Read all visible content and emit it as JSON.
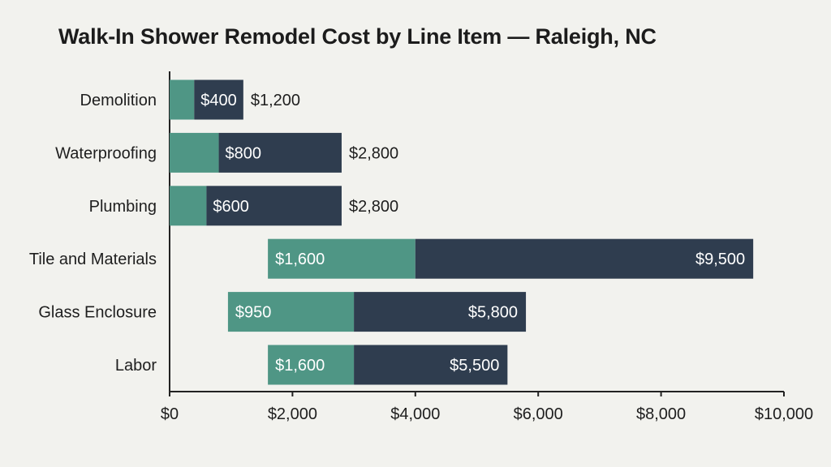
{
  "chart_data": {
    "type": "bar",
    "orientation": "horizontal",
    "title": "Walk-In Shower Remodel Cost by Line Item — Raleigh, NC",
    "xlabel": "",
    "ylabel": "",
    "xlim": [
      0,
      10000
    ],
    "x_ticks": [
      0,
      2000,
      4000,
      6000,
      8000,
      10000
    ],
    "x_tick_labels": [
      "$0",
      "$2,000",
      "$4,000",
      "$6,000",
      "$8,000",
      "$10,000"
    ],
    "categories": [
      "Demolition",
      "Waterproofing",
      "Plumbing",
      "Tile and Materials",
      "Glass Enclosure",
      "Labor"
    ],
    "ranges": [
      {
        "low": 400,
        "high": 1200,
        "low_label": "$400",
        "high_label": "$1,200"
      },
      {
        "low": 800,
        "high": 2800,
        "low_label": "$800",
        "high_label": "$2,800"
      },
      {
        "low": 600,
        "high": 2800,
        "low_label": "$600",
        "high_label": "$2,800"
      },
      {
        "low": 1600,
        "high": 9500,
        "low_label": "$1,600",
        "high_label": "$9,500"
      },
      {
        "low": 950,
        "high": 5800,
        "low_label": "$950",
        "high_label": "$5,800"
      },
      {
        "low": 1600,
        "high": 5500,
        "low_label": "$1,600",
        "high_label": "$5,500"
      }
    ],
    "grid": false,
    "legend": "none",
    "colors": {
      "low_segment": "#4f9685",
      "high_segment": "#2f3d4f",
      "axis": "#222222",
      "background": "#f2f2ee"
    }
  }
}
